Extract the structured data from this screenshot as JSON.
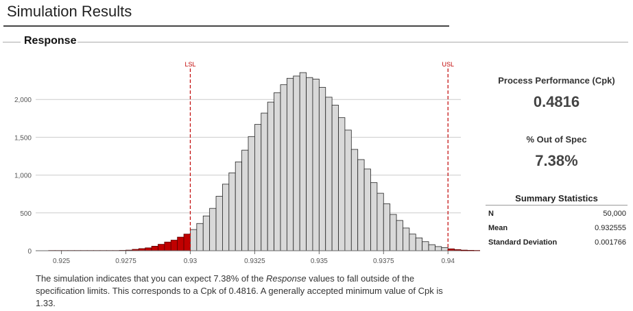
{
  "page": {
    "title": "Simulation Results",
    "section": "Response"
  },
  "stats": {
    "cpk_label": "Process Performance (Cpk)",
    "cpk_value": "0.4816",
    "oos_label": "% Out of Spec",
    "oos_value": "7.38%"
  },
  "summary": {
    "title": "Summary Statistics",
    "rows": [
      {
        "label": "N",
        "value": "50,000"
      },
      {
        "label": "Mean",
        "value": "0.932555"
      },
      {
        "label": "Standard Deviation",
        "value": "0.001766"
      }
    ]
  },
  "description": {
    "part1": "The simulation indicates that you can expect 7.38% of the ",
    "emphasis": "Response",
    "part2": " values to fall outside of the specification limits. This corresponds to a Cpk of 0.4816. A generally accepted minimum value of Cpk is 1.33."
  },
  "colors": {
    "in_spec_fill": "#d9d9d9",
    "out_spec_fill": "#c00000",
    "spec_line": "#c00000",
    "grid": "#cccccc"
  },
  "chart_data": {
    "type": "bar",
    "title": "",
    "xlabel": "",
    "ylabel": "",
    "bin_width": 0.00025,
    "bins_start": 0.9245,
    "values": [
      3,
      3,
      3,
      3,
      3,
      3,
      3,
      3,
      3,
      3,
      3,
      5,
      8,
      18,
      28,
      38,
      60,
      85,
      115,
      140,
      180,
      220,
      280,
      360,
      460,
      560,
      720,
      880,
      1030,
      1175,
      1330,
      1510,
      1670,
      1820,
      1965,
      2090,
      2195,
      2280,
      2310,
      2355,
      2290,
      2270,
      2160,
      2030,
      1925,
      1760,
      1595,
      1340,
      1205,
      1080,
      900,
      760,
      620,
      480,
      400,
      300,
      220,
      170,
      120,
      80,
      55,
      40,
      25,
      15,
      8,
      5,
      3,
      3
    ],
    "spec_limits": [
      {
        "label": "LSL",
        "value": 0.93
      },
      {
        "label": "USL",
        "value": 0.94
      }
    ],
    "xlim": [
      0.924,
      0.9405
    ],
    "ylim": [
      0,
      2500
    ],
    "xticks": [
      0.925,
      0.9275,
      0.93,
      0.9325,
      0.935,
      0.9375,
      0.94
    ],
    "xtick_labels": [
      "0.925",
      "0.9275",
      "0.93",
      "0.9325",
      "0.935",
      "0.9375",
      "0.94"
    ],
    "yticks": [
      0,
      500,
      1000,
      1500,
      2000
    ],
    "ytick_labels": [
      "0",
      "500",
      "1,000",
      "1,500",
      "2,000"
    ],
    "grid": true
  }
}
